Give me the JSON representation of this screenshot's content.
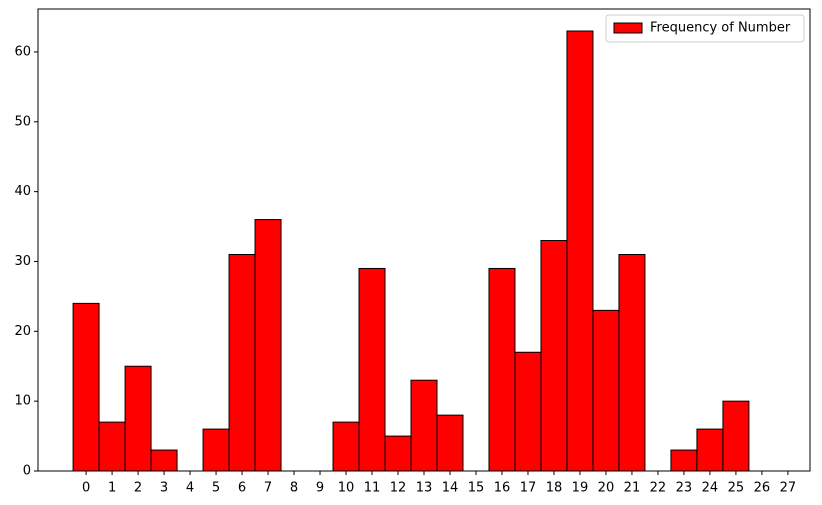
{
  "chart_data": {
    "type": "histogram",
    "bins": [
      -0.5,
      0.5,
      1.5,
      2.5,
      3.5,
      4.5,
      5.5,
      6.5,
      7.5,
      8.5,
      9.5,
      10.5,
      11.5,
      12.5,
      13.5,
      14.5,
      15.5,
      16.5,
      17.5,
      18.5,
      19.5,
      20.5,
      21.5,
      22.5,
      23.5,
      24.5,
      25.5,
      26.5
    ],
    "series": [
      {
        "name": "Frequency of Number",
        "color": "#ff0000",
        "edgecolor": "#000000",
        "values": [
          24,
          7,
          15,
          3,
          0,
          6,
          31,
          36,
          0,
          0,
          7,
          29,
          5,
          13,
          8,
          0,
          29,
          17,
          33,
          63,
          23,
          31,
          0,
          3,
          6,
          10,
          0
        ]
      }
    ],
    "xlim": [
      -1.85,
      27.85
    ],
    "xticks": [
      0,
      1,
      2,
      3,
      4,
      5,
      6,
      7,
      8,
      9,
      10,
      11,
      12,
      13,
      14,
      15,
      16,
      17,
      18,
      19,
      20,
      21,
      22,
      23,
      24,
      25,
      26,
      27
    ],
    "ylim": [
      0,
      66.15
    ],
    "yticks": [
      0,
      10,
      20,
      30,
      40,
      50,
      60
    ],
    "legend": "upper right"
  }
}
